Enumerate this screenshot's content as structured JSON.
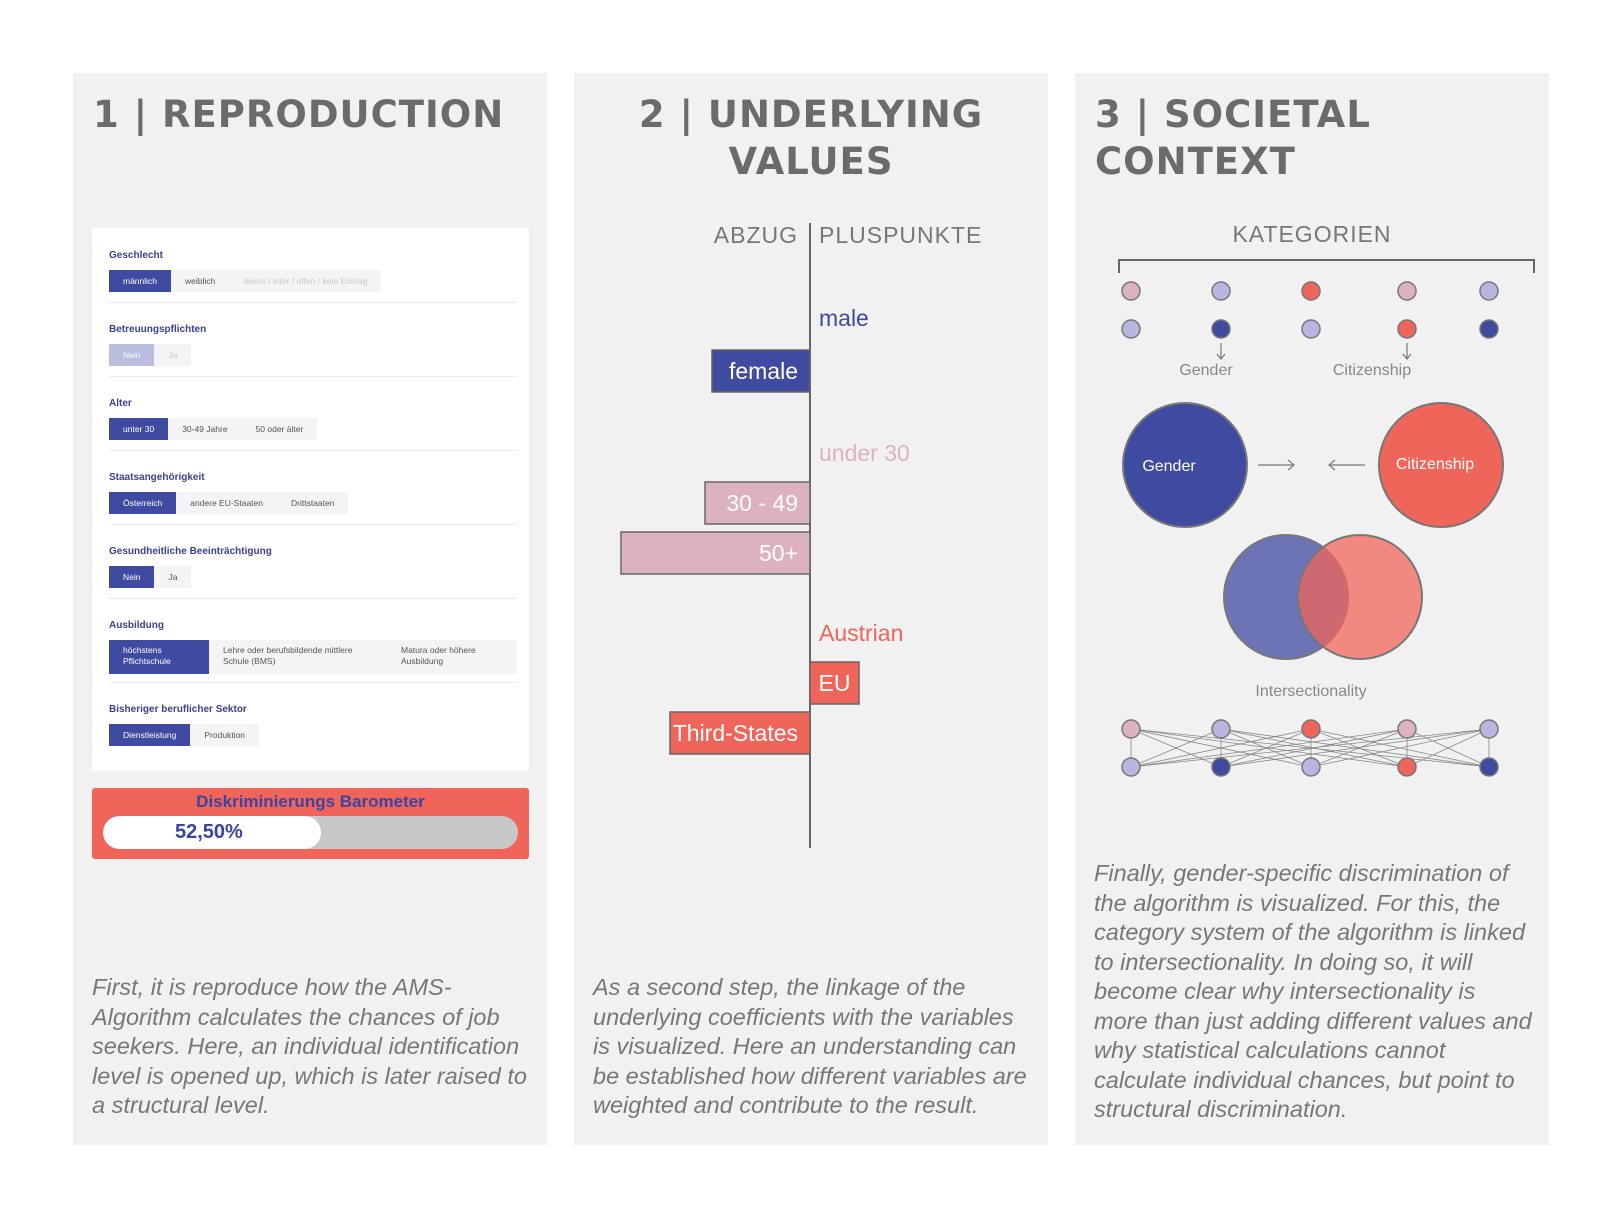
{
  "panel1": {
    "title": "1 | REPRODUCTION",
    "sections": [
      {
        "label": "Geschlecht",
        "options": [
          "männlich",
          "weiblich",
          "divers / inter / offen / kein Eintrag"
        ]
      },
      {
        "label": "Betreuungspflichten",
        "options": [
          "Nein",
          "Ja"
        ]
      },
      {
        "label": "Alter",
        "options": [
          "unter 30",
          "30-49 Jahre",
          "50 oder älter"
        ]
      },
      {
        "label": "Staatsangehörigkeit",
        "options": [
          "Österreich",
          "andere EU-Staaten",
          "Drittstaaten"
        ]
      },
      {
        "label": "Gesundheitliche Beeinträchtigung",
        "options": [
          "Nein",
          "Ja"
        ]
      },
      {
        "label": "Ausbildung",
        "options": [
          "höchstens Pflichtschule",
          "Lehre oder berufsbildende mittlere Schule (BMS)",
          "Matura oder höhere Ausbildung"
        ]
      },
      {
        "label": "Bisheriger beruflicher Sektor",
        "options": [
          "Dienstleistung",
          "Produktion"
        ]
      }
    ],
    "barometer": {
      "title": "Diskriminierungs Barometer",
      "value_label": "52,50%",
      "fill_fraction": 0.525
    },
    "description": "First, it is reproduce how the AMS-Algorithm calculates the chances of job seekers. Here, an individual identification level is opened up, which is later raised to a structural level."
  },
  "panel2": {
    "title_line1": "2 | UNDERLYING",
    "title_line2": "VALUES",
    "description": "As a second step, the linkage of the underlying coefficients with the variables is visualized. Here an understanding can be established how different variables are weighted and contribute to the result."
  },
  "chart_data": {
    "type": "bar",
    "orientation": "horizontal-diverging",
    "left_label": "ABZUG",
    "right_label": "PLUSPUNKTE",
    "categories": [
      "male",
      "female",
      "under 30",
      "30 - 49",
      "50+",
      "Austrian",
      "EU",
      "Third-States"
    ],
    "values": [
      0,
      -0.14,
      0,
      -0.15,
      -0.27,
      0,
      0.07,
      -0.2
    ],
    "groups": [
      "gender",
      "gender",
      "age",
      "age",
      "age",
      "citizenship",
      "citizenship",
      "citizenship"
    ],
    "colors": {
      "gender": "#3f4aa1",
      "age": "#dcb2bf",
      "citizenship": "#f0655a"
    }
  },
  "panel3": {
    "title": "3 | SOCIETAL CONTEXT",
    "kategorien_label": "KATEGORIEN",
    "gender_label": "Gender",
    "citizenship_label": "Citizenship",
    "circle_gender": "Gender",
    "circle_citizenship": "Citizenship",
    "intersectionality_label": "Intersectionality",
    "colors": {
      "blue": "#3f4aa1",
      "pink": "#dcb2bf",
      "red": "#f0655a",
      "lavender": "#b6b6e0"
    },
    "description": "Finally, gender-specific discrimination of the algorithm is visualized. For this, the category system of the algorithm is linked to intersectionality. In doing so, it will become clear why intersectionality is more than just adding different values and why statistical calculations cannot calculate individual chances, but point to structural discrimination."
  }
}
